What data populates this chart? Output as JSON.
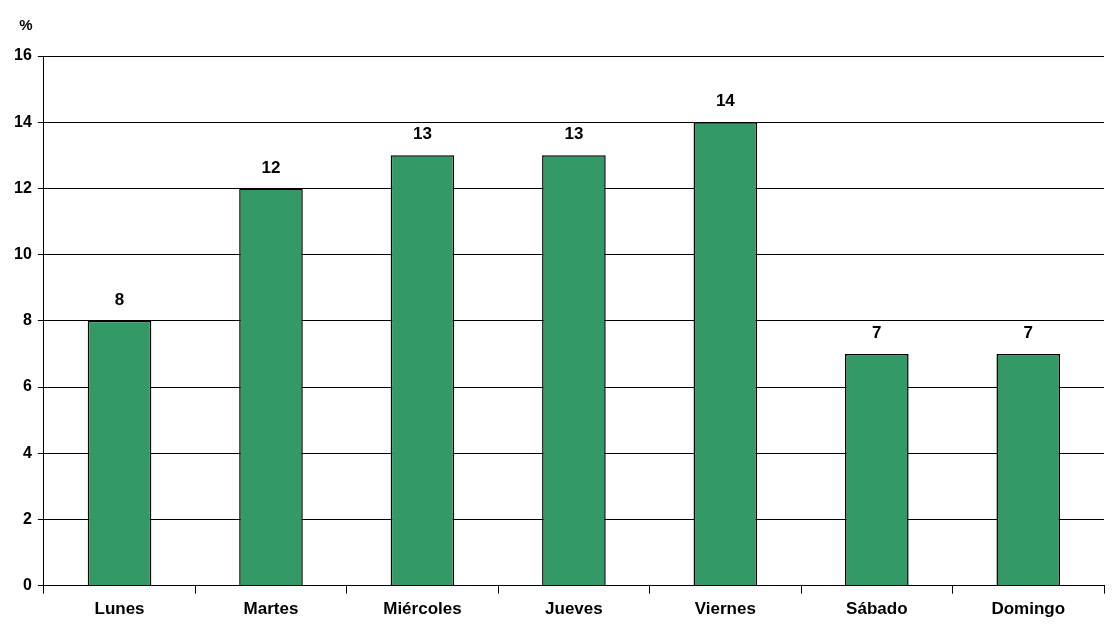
{
  "chart_data": {
    "type": "bar",
    "ylabel": "%",
    "categories": [
      "Lunes",
      "Martes",
      "Miércoles",
      "Jueves",
      "Viernes",
      "Sábado",
      "Domingo"
    ],
    "values": [
      8,
      12,
      13,
      13,
      14,
      7,
      7
    ],
    "color": "#339966",
    "ylim": [
      0,
      16
    ],
    "yticks": [
      0,
      2,
      4,
      6,
      8,
      10,
      12,
      14,
      16
    ],
    "grid": "y",
    "data_labels": true,
    "legend": false
  }
}
